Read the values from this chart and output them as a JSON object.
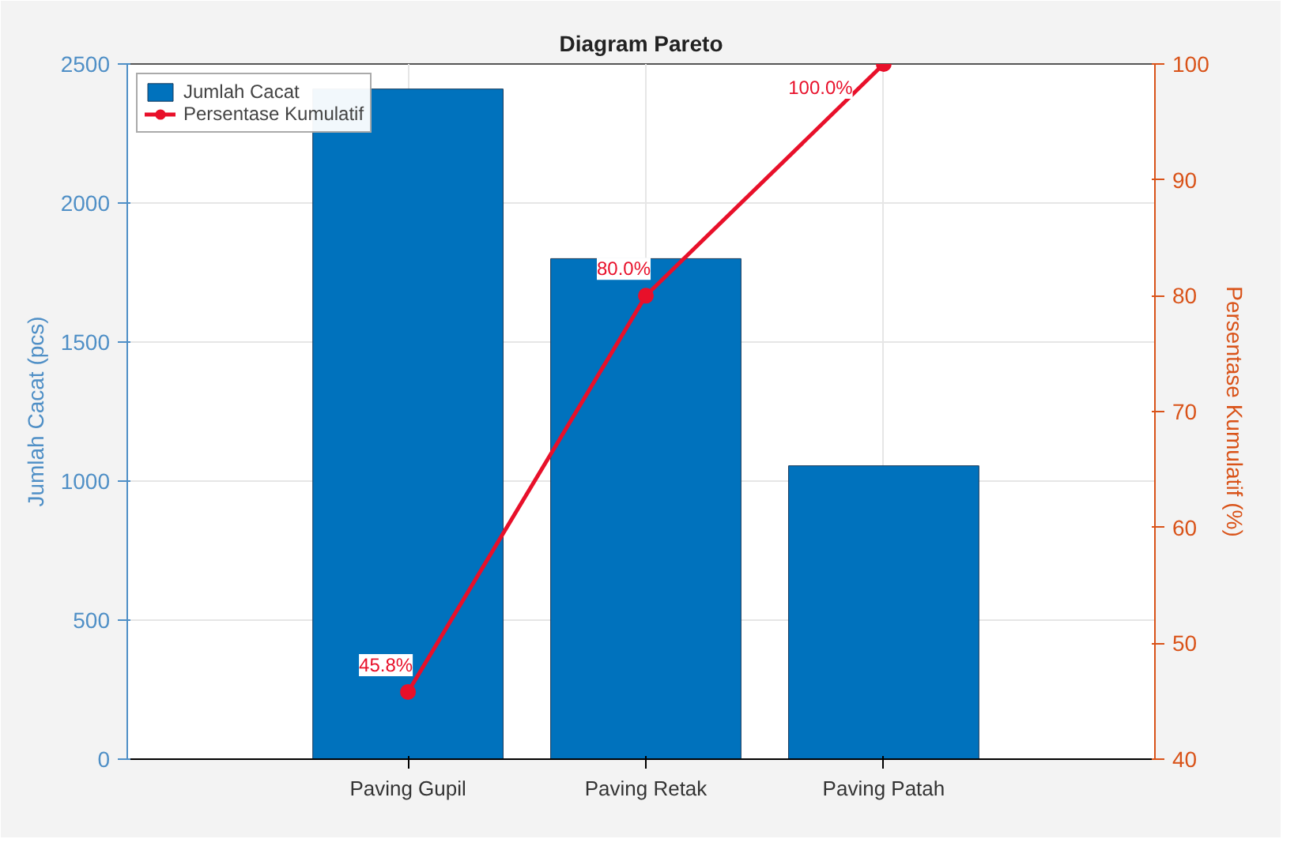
{
  "chart_data": {
    "type": "bar",
    "title": "Diagram Pareto",
    "ylabel": "Jumlah Cacat (pcs)",
    "y2label": "Persentase Kumulatif (%)",
    "categories": [
      "Paving Gupil",
      "Paving Retak",
      "Paving Patah"
    ],
    "series": [
      {
        "name": "Jumlah Cacat",
        "color": "#0072bd",
        "values": [
          2410,
          1800,
          1055
        ]
      },
      {
        "name": "Persentase Kumulatif",
        "type": "line",
        "axis": "y2",
        "color": "#e8102a",
        "marker": "circle",
        "values": [
          45.8,
          80.0,
          100.0
        ],
        "value_labels": [
          "45.8%",
          "80.0%",
          "100.0%"
        ]
      }
    ],
    "ylim": [
      0,
      2500
    ],
    "yticks": [
      0,
      500,
      1000,
      1500,
      2000,
      2500
    ],
    "y2lim": [
      40,
      100
    ],
    "y2ticks": [
      40,
      50,
      60,
      70,
      80,
      90,
      100
    ],
    "grid": true,
    "legend": "top left"
  }
}
